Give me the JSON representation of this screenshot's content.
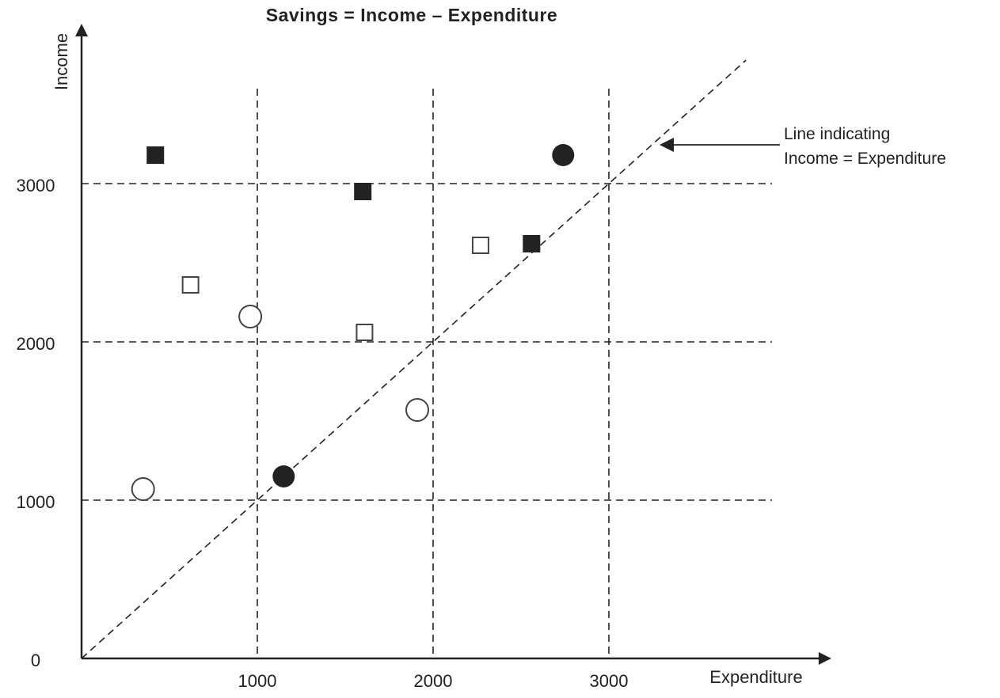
{
  "chart_data": {
    "type": "scatter",
    "title": "Savings = Income – Expenditure",
    "xlabel": "Expenditure",
    "ylabel": "Income",
    "xlim": [
      0,
      4100
    ],
    "ylim": [
      0,
      3950
    ],
    "x_ticks": [
      1000,
      2000,
      3000
    ],
    "y_ticks": [
      0,
      1000,
      2000,
      3000
    ],
    "grid": true,
    "reference_line": {
      "label": "Line indicating",
      "label2": "Income = Expenditure",
      "type": "y=x"
    },
    "series": [
      {
        "marker": "square-filled",
        "color": "#222222",
        "points": [
          [
            420,
            3180
          ],
          [
            1600,
            2950
          ],
          [
            2560,
            2620
          ]
        ]
      },
      {
        "marker": "square-open",
        "color": "#444444",
        "points": [
          [
            620,
            2360
          ],
          [
            1610,
            2060
          ],
          [
            2270,
            2610
          ]
        ]
      },
      {
        "marker": "circle-filled",
        "color": "#222222",
        "points": [
          [
            1150,
            1150
          ],
          [
            2740,
            3180
          ]
        ]
      },
      {
        "marker": "circle-open",
        "color": "#444444",
        "points": [
          [
            350,
            1070
          ],
          [
            960,
            2160
          ],
          [
            1910,
            1570
          ]
        ]
      }
    ]
  }
}
